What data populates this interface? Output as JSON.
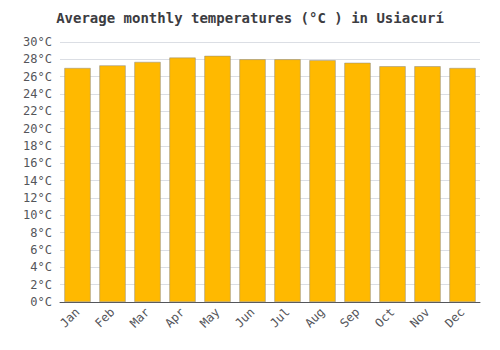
{
  "chart_data": {
    "type": "bar",
    "title": "Average monthly temperatures (°C ) in Usiacurí",
    "categories": [
      "Jan",
      "Feb",
      "Mar",
      "Apr",
      "May",
      "Jun",
      "Jul",
      "Aug",
      "Sep",
      "Oct",
      "Nov",
      "Dec"
    ],
    "values": [
      27.0,
      27.3,
      27.7,
      28.2,
      28.4,
      28.0,
      28.0,
      27.9,
      27.6,
      27.2,
      27.2,
      27.0
    ],
    "color": "#FFB900",
    "ylim": [
      0,
      30
    ],
    "yticks": [
      {
        "value": 0,
        "label": "0°C"
      },
      {
        "value": 2,
        "label": "2°C"
      },
      {
        "value": 4,
        "label": "4°C"
      },
      {
        "value": 6,
        "label": "6°C"
      },
      {
        "value": 8,
        "label": "8°C"
      },
      {
        "value": 10,
        "label": "10°C"
      },
      {
        "value": 12,
        "label": "12°C"
      },
      {
        "value": 14,
        "label": "14°C"
      },
      {
        "value": 16,
        "label": "16°C"
      },
      {
        "value": 18,
        "label": "18°C"
      },
      {
        "value": 20,
        "label": "20°C"
      },
      {
        "value": 22,
        "label": "22°C"
      },
      {
        "value": 24,
        "label": "24°C"
      },
      {
        "value": 26,
        "label": "26°C"
      },
      {
        "value": 28,
        "label": "28°C"
      },
      {
        "value": 30,
        "label": "30°C"
      }
    ],
    "grid": true
  }
}
